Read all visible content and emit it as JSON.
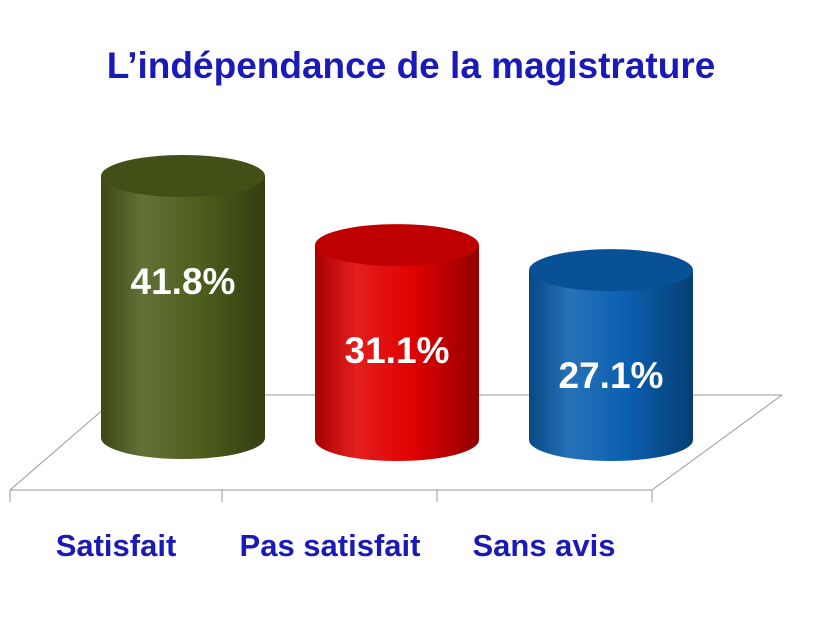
{
  "chart_data": {
    "type": "bar",
    "title": "L’indépendance de la magistrature",
    "categories": [
      "Satisfait",
      "Pas satisfait",
      "Sans avis"
    ],
    "values": [
      41.8,
      31.1,
      27.1
    ],
    "value_labels": [
      "41.8%",
      "31.1%",
      "27.1%"
    ],
    "unit": "%",
    "bar_shape": "3d-cylinder",
    "grid": false,
    "legend": "none",
    "ylim": [
      0,
      41.8
    ]
  },
  "colors": {
    "title": "#1a1ab8",
    "category_text": "#1a1ab8",
    "value_text": "#ffffff",
    "floor_line": "#9a9a9a",
    "bars": [
      "#4e5e1c",
      "#e00000",
      "#0a5fb0"
    ]
  }
}
